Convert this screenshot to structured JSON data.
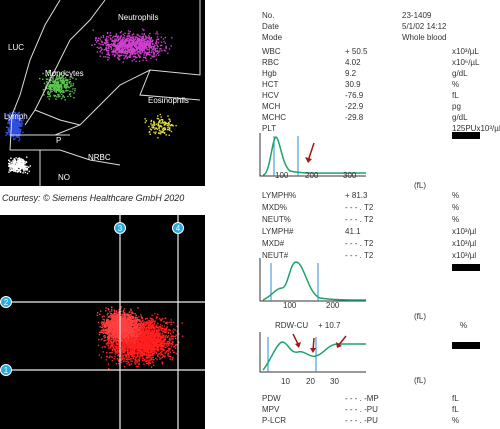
{
  "scattergram": {
    "labels": [
      "Neutrophils",
      "LUC",
      "Monocytes",
      "Eosinophils",
      "Lymph",
      "P",
      "NRBC",
      "NO"
    ]
  },
  "courtesy": "Courtesy: © Siemens Healthcare GmbH 2020",
  "scatterplot": {
    "markers": [
      "1",
      "2",
      "3",
      "4"
    ]
  },
  "report": {
    "header": [
      [
        "No.",
        "23-1409"
      ],
      [
        "Date",
        "5/1/02 14:12"
      ],
      [
        "Mode",
        "Whole blood"
      ]
    ],
    "rows_1": [
      [
        "WBC",
        "+ 50.5",
        "x10³/µL"
      ],
      [
        "RBC",
        "4.02",
        "x10⁶/µL"
      ],
      [
        "Hgb",
        "9.2",
        "g/dL"
      ],
      [
        "HCT",
        "30.9",
        "%"
      ],
      [
        "HCV",
        "-76.9",
        "fL"
      ],
      [
        "MCH",
        "-22.9",
        "pg"
      ],
      [
        "MCHC",
        "-29.8",
        "g/dL"
      ],
      [
        "PLT",
        "",
        "125PUx10³/µL"
      ]
    ],
    "histogram_1_axis": [
      "100",
      "200",
      "300"
    ],
    "unit_label": "(fL)",
    "rows_2": [
      [
        "LYMPH%",
        "+ 81.3",
        "%"
      ],
      [
        "MXD%",
        "- - - . T2",
        "%"
      ],
      [
        "NEUT%",
        "- - - . T2",
        "%"
      ],
      [
        "LYMPH#",
        "41.1",
        "x10³/µl"
      ],
      [
        "MXD#",
        "- - - . T2",
        "x10³/µl"
      ],
      [
        "NEUT#",
        "- - - . T2",
        "x10³/µl"
      ]
    ],
    "histogram_2_axis": [
      "100",
      "200"
    ],
    "rdw": [
      "RDW-CU",
      "+ 10.7",
      "%"
    ],
    "histogram_3_axis": [
      "10",
      "20",
      "30"
    ],
    "rows_3": [
      [
        "PDW",
        "- - - . -MP",
        "fL"
      ],
      [
        "MPV",
        "- - - . -PU",
        "fL"
      ],
      [
        "P-LCR",
        "- - - . -PU",
        "%"
      ]
    ]
  }
}
